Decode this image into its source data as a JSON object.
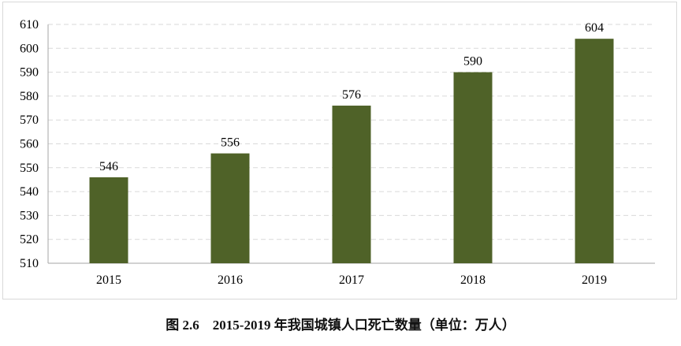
{
  "chart_data": {
    "type": "bar",
    "categories": [
      "2015",
      "2016",
      "2017",
      "2018",
      "2019"
    ],
    "values": [
      546,
      556,
      576,
      590,
      604
    ],
    "ylim": [
      510,
      610
    ],
    "yticks": [
      510,
      520,
      530,
      540,
      550,
      560,
      570,
      580,
      590,
      600,
      610
    ],
    "grid": true,
    "bar_color": "#4f6228",
    "grid_color": "#d9d9d9",
    "xlabel": "",
    "ylabel": ""
  },
  "caption": "图 2.6　2015-2019 年我国城镇人口死亡数量（单位：万人）"
}
